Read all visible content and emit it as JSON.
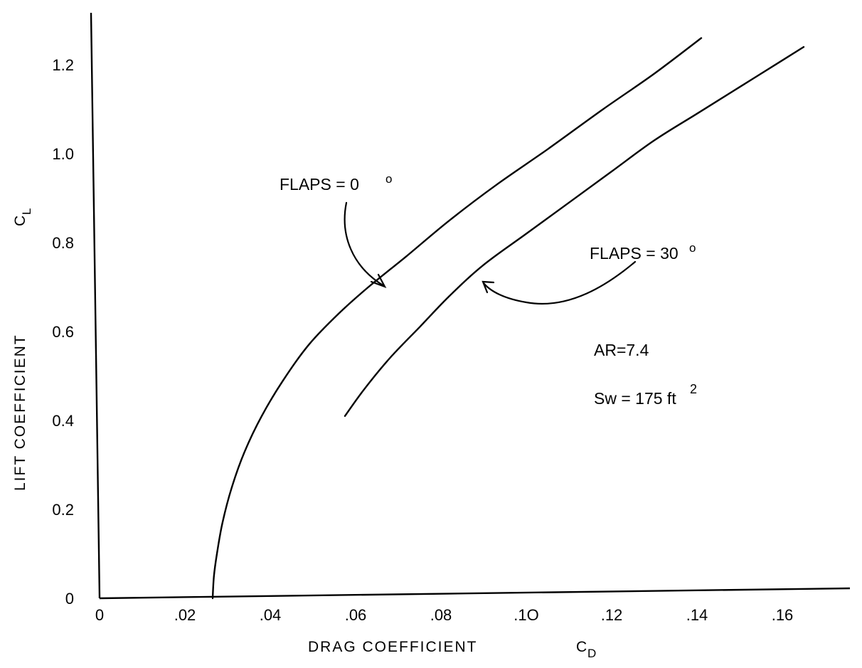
{
  "chart_data": {
    "type": "line",
    "xlabel": "DRAG COEFFICIENT",
    "xlabel_symbol": "C",
    "xlabel_subscript": "D",
    "ylabel": "LIFT COEFFICIENT",
    "ylabel_symbol": "C",
    "ylabel_subscript": "L",
    "xlim": [
      0,
      0.165
    ],
    "ylim": [
      0,
      1.3
    ],
    "x_ticks": [
      0,
      0.02,
      0.04,
      0.06,
      0.08,
      0.1,
      0.12,
      0.14,
      0.16
    ],
    "x_tick_labels": [
      "0",
      ".02",
      ".04",
      ".06",
      ".08",
      ".1O",
      ".12",
      ".14",
      ".16"
    ],
    "y_ticks": [
      0,
      0.2,
      0.4,
      0.6,
      0.8,
      1.0,
      1.2
    ],
    "y_tick_labels": [
      "0",
      "0.2",
      "0.4",
      "0.6",
      "0.8",
      "1.0",
      "1.2"
    ],
    "grid": false,
    "series": [
      {
        "name": "FLAPS = 0°",
        "x": [
          0.0265,
          0.0268,
          0.0275,
          0.0288,
          0.031,
          0.034,
          0.038,
          0.043,
          0.049,
          0.056,
          0.063,
          0.072,
          0.082,
          0.093,
          0.105,
          0.118,
          0.13,
          0.141
        ],
        "y": [
          0.0,
          0.05,
          0.1,
          0.17,
          0.25,
          0.33,
          0.41,
          0.49,
          0.57,
          0.64,
          0.7,
          0.77,
          0.85,
          0.93,
          1.01,
          1.1,
          1.18,
          1.26
        ]
      },
      {
        "name": "FLAPS = 30°",
        "x": [
          0.0575,
          0.062,
          0.068,
          0.075,
          0.082,
          0.09,
          0.1,
          0.11,
          0.12,
          0.13,
          0.14,
          0.15,
          0.16,
          0.165
        ],
        "y": [
          0.41,
          0.47,
          0.54,
          0.61,
          0.68,
          0.75,
          0.82,
          0.89,
          0.96,
          1.03,
          1.09,
          1.15,
          1.21,
          1.24
        ]
      }
    ],
    "annotations": [
      {
        "text": "FLAPS = 0",
        "degree": "o",
        "points_to_series": 0
      },
      {
        "text": "FLAPS = 30",
        "degree": "o",
        "points_to_series": 1
      },
      {
        "text": "AR=7.4"
      },
      {
        "text": "Sw = 175 ft",
        "exponent": "2"
      }
    ]
  }
}
